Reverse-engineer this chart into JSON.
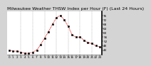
{
  "title": "Milwaukee Weather THSW Index per Hour (F) (Last 24 Hours)",
  "hours": [
    0,
    1,
    2,
    3,
    4,
    5,
    6,
    7,
    8,
    9,
    10,
    11,
    12,
    13,
    14,
    15,
    16,
    17,
    18,
    19,
    20,
    21,
    22,
    23
  ],
  "values": [
    44,
    43,
    43,
    42,
    41,
    41,
    42,
    44,
    49,
    55,
    61,
    68,
    74,
    76,
    72,
    66,
    58,
    56,
    56,
    53,
    51,
    50,
    48,
    47
  ],
  "line_color": "#dd0000",
  "marker_color": "#000000",
  "background_color": "#d4d4d4",
  "plot_bg_color": "#ffffff",
  "grid_color": "#888888",
  "title_color": "#000000",
  "ylim": [
    40,
    80
  ],
  "ytick_values": [
    44,
    48,
    52,
    56,
    60,
    64,
    68,
    72,
    76
  ],
  "ytick_labels": [
    "44",
    "48",
    "52",
    "56",
    "60",
    "64",
    "68",
    "72",
    "76"
  ],
  "xtick_hours": [
    0,
    1,
    2,
    3,
    4,
    5,
    6,
    7,
    8,
    9,
    10,
    11,
    12,
    13,
    14,
    15,
    16,
    17,
    18,
    19,
    20,
    21,
    22,
    23
  ],
  "vgrid_hours": [
    3,
    6,
    9,
    12,
    15,
    18,
    21
  ],
  "title_fontsize": 4.5,
  "tick_fontsize": 3.0,
  "linewidth": 0.7,
  "markersize": 1.5
}
